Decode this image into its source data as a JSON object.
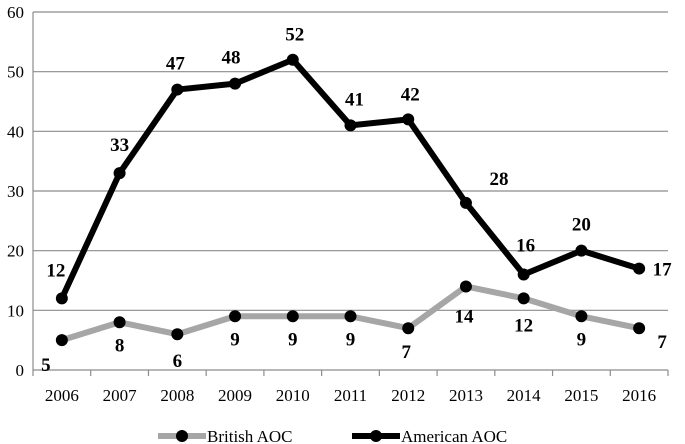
{
  "chart_data": {
    "type": "line",
    "categories": [
      "2006",
      "2007",
      "2008",
      "2009",
      "2010",
      "2011",
      "2012",
      "2013",
      "2014",
      "2015",
      "2016"
    ],
    "series": [
      {
        "name": "British AOC",
        "values": [
          5,
          8,
          6,
          9,
          9,
          9,
          7,
          14,
          12,
          9,
          7
        ],
        "color": "#a6a6a6"
      },
      {
        "name": "American AOC",
        "values": [
          12,
          33,
          47,
          48,
          52,
          41,
          42,
          28,
          16,
          20,
          17
        ],
        "color": "#000000"
      }
    ],
    "ylim": [
      0,
      60
    ],
    "yticks": [
      0,
      10,
      20,
      30,
      40,
      50,
      60
    ],
    "grid": true,
    "legend_position": "bottom"
  }
}
